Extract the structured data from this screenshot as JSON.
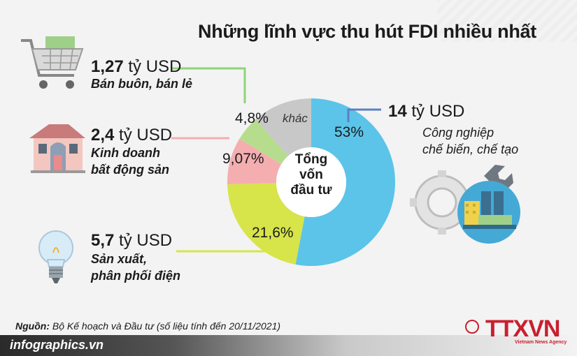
{
  "title": "Những lĩnh vực thu hút FDI nhiều nhất",
  "center_label": [
    "Tổng",
    "vốn",
    "đầu tư"
  ],
  "items": [
    {
      "amount": "1,27",
      "unit": "tỷ USD",
      "label_lines": [
        "Bán buôn, bán lẻ"
      ],
      "percent_label": "4,8%",
      "icon": "shopping-cart-icon"
    },
    {
      "amount": "2,4",
      "unit": "tỷ USD",
      "label_lines": [
        "Kinh doanh",
        "bất động sản"
      ],
      "percent_label": "9,07%",
      "icon": "house-icon"
    },
    {
      "amount": "5,7",
      "unit": "tỷ USD",
      "label_lines": [
        "Sản xuất,",
        "phân phối điện"
      ],
      "percent_label": "21,6%",
      "icon": "light-bulb-icon"
    },
    {
      "amount": "14",
      "unit": "tỷ USD",
      "label_lines": [
        "Công nghiệp",
        "chế biến, chế tạo"
      ],
      "percent_label": "53%",
      "icon": "factory-gear-icon"
    }
  ],
  "other_label": "khác",
  "source": {
    "prefix": "Nguồn:",
    "text": "Bộ Kế hoạch và Đầu tư (số liệu tính đến 20/11/2021)"
  },
  "footer": "infographics.vn",
  "logo": {
    "word": "TTXVN",
    "sub": "Vietnam News Agency",
    "symbol": "©"
  },
  "chart_data": {
    "type": "pie",
    "title": "Những lĩnh vực thu hút FDI nhiều nhất",
    "center_label": "Tổng vốn đầu tư",
    "categories": [
      "Công nghiệp chế biến, chế tạo",
      "Sản xuất, phân phối điện",
      "Kinh doanh bất động sản",
      "Bán buôn, bán lẻ",
      "khác"
    ],
    "values": [
      53,
      21.6,
      9.07,
      4.8,
      11.53
    ],
    "amounts_billion_usd": [
      14,
      5.7,
      2.4,
      1.27,
      null
    ],
    "colors": [
      "#5bc4e8",
      "#d7e44a",
      "#f4aeb0",
      "#b6dd8d",
      "#c8c8c8"
    ]
  }
}
